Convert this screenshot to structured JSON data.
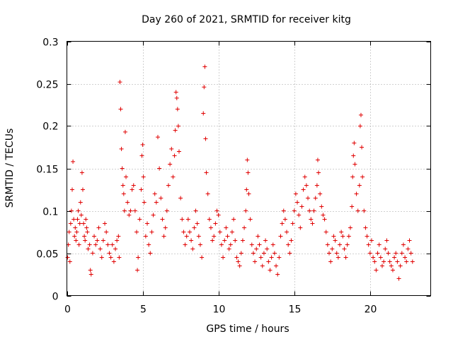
{
  "chart_data": {
    "type": "scatter",
    "title": "Day 260 of 2021, SRMTID for receiver kitg",
    "xlabel": "GPS time / hours",
    "ylabel": "SRMTID / TECUs",
    "xlim": [
      0,
      24
    ],
    "ylim": [
      0,
      0.3
    ],
    "x_ticks": [
      0,
      5,
      10,
      15,
      20
    ],
    "x_tick_labels": [
      "0",
      "5",
      "10",
      "15",
      "20"
    ],
    "y_ticks": [
      0,
      0.05,
      0.1,
      0.15,
      0.2,
      0.25,
      0.3
    ],
    "y_tick_labels": [
      "0",
      "0.05",
      "0.1",
      "0.15",
      "0.2",
      "0.25",
      "0.3"
    ],
    "grid": true,
    "marker": "plus",
    "color": "#e00000",
    "series": [
      {
        "name": "SRMTID",
        "points": [
          [
            0.05,
            0.045
          ],
          [
            0.1,
            0.06
          ],
          [
            0.15,
            0.075
          ],
          [
            0.2,
            0.04
          ],
          [
            0.25,
            0.085
          ],
          [
            0.3,
            0.1
          ],
          [
            0.35,
            0.125
          ],
          [
            0.4,
            0.158
          ],
          [
            0.45,
            0.09
          ],
          [
            0.5,
            0.07
          ],
          [
            0.55,
            0.08
          ],
          [
            0.6,
            0.065
          ],
          [
            0.65,
            0.075
          ],
          [
            0.7,
            0.09
          ],
          [
            0.75,
            0.1
          ],
          [
            0.8,
            0.06
          ],
          [
            0.85,
            0.085
          ],
          [
            0.9,
            0.11
          ],
          [
            0.95,
            0.095
          ],
          [
            1.0,
            0.145
          ],
          [
            1.05,
            0.125
          ],
          [
            1.1,
            0.085
          ],
          [
            1.15,
            0.07
          ],
          [
            1.2,
            0.065
          ],
          [
            1.25,
            0.09
          ],
          [
            1.3,
            0.08
          ],
          [
            1.35,
            0.075
          ],
          [
            1.4,
            0.055
          ],
          [
            1.5,
            0.06
          ],
          [
            1.55,
            0.03
          ],
          [
            1.6,
            0.025
          ],
          [
            1.7,
            0.05
          ],
          [
            1.8,
            0.07
          ],
          [
            1.9,
            0.06
          ],
          [
            2.0,
            0.065
          ],
          [
            2.1,
            0.08
          ],
          [
            2.2,
            0.055
          ],
          [
            2.3,
            0.045
          ],
          [
            2.4,
            0.065
          ],
          [
            2.5,
            0.085
          ],
          [
            2.6,
            0.075
          ],
          [
            2.7,
            0.06
          ],
          [
            2.8,
            0.05
          ],
          [
            2.9,
            0.045
          ],
          [
            3.0,
            0.06
          ],
          [
            3.1,
            0.04
          ],
          [
            3.2,
            0.055
          ],
          [
            3.3,
            0.065
          ],
          [
            3.4,
            0.07
          ],
          [
            3.45,
            0.045
          ],
          [
            3.5,
            0.252
          ],
          [
            3.55,
            0.22
          ],
          [
            3.6,
            0.173
          ],
          [
            3.65,
            0.15
          ],
          [
            3.7,
            0.13
          ],
          [
            3.75,
            0.12
          ],
          [
            3.8,
            0.1
          ],
          [
            3.85,
            0.193
          ],
          [
            3.9,
            0.14
          ],
          [
            4.0,
            0.11
          ],
          [
            4.1,
            0.095
          ],
          [
            4.2,
            0.1
          ],
          [
            4.3,
            0.125
          ],
          [
            4.4,
            0.13
          ],
          [
            4.5,
            0.1
          ],
          [
            4.6,
            0.075
          ],
          [
            4.65,
            0.03
          ],
          [
            4.7,
            0.045
          ],
          [
            4.8,
            0.09
          ],
          [
            4.9,
            0.125
          ],
          [
            4.95,
            0.165
          ],
          [
            5.0,
            0.178
          ],
          [
            5.05,
            0.14
          ],
          [
            5.1,
            0.11
          ],
          [
            5.2,
            0.07
          ],
          [
            5.3,
            0.085
          ],
          [
            5.4,
            0.06
          ],
          [
            5.5,
            0.05
          ],
          [
            5.6,
            0.075
          ],
          [
            5.7,
            0.095
          ],
          [
            5.8,
            0.12
          ],
          [
            5.9,
            0.11
          ],
          [
            6.0,
            0.187
          ],
          [
            6.1,
            0.15
          ],
          [
            6.2,
            0.115
          ],
          [
            6.3,
            0.09
          ],
          [
            6.4,
            0.07
          ],
          [
            6.5,
            0.08
          ],
          [
            6.6,
            0.1
          ],
          [
            6.7,
            0.13
          ],
          [
            6.8,
            0.155
          ],
          [
            6.9,
            0.173
          ],
          [
            7.0,
            0.14
          ],
          [
            7.1,
            0.165
          ],
          [
            7.15,
            0.195
          ],
          [
            7.2,
            0.24
          ],
          [
            7.25,
            0.233
          ],
          [
            7.3,
            0.22
          ],
          [
            7.35,
            0.2
          ],
          [
            7.4,
            0.17
          ],
          [
            7.5,
            0.115
          ],
          [
            7.6,
            0.09
          ],
          [
            7.7,
            0.075
          ],
          [
            7.8,
            0.06
          ],
          [
            7.9,
            0.07
          ],
          [
            8.0,
            0.09
          ],
          [
            8.1,
            0.075
          ],
          [
            8.2,
            0.065
          ],
          [
            8.3,
            0.055
          ],
          [
            8.4,
            0.08
          ],
          [
            8.5,
            0.1
          ],
          [
            8.6,
            0.085
          ],
          [
            8.7,
            0.07
          ],
          [
            8.8,
            0.06
          ],
          [
            8.9,
            0.045
          ],
          [
            9.0,
            0.215
          ],
          [
            9.05,
            0.246
          ],
          [
            9.1,
            0.27
          ],
          [
            9.15,
            0.185
          ],
          [
            9.2,
            0.145
          ],
          [
            9.3,
            0.12
          ],
          [
            9.4,
            0.09
          ],
          [
            9.5,
            0.08
          ],
          [
            9.6,
            0.065
          ],
          [
            9.7,
            0.07
          ],
          [
            9.8,
            0.085
          ],
          [
            9.9,
            0.1
          ],
          [
            10.0,
            0.095
          ],
          [
            10.1,
            0.075
          ],
          [
            10.2,
            0.06
          ],
          [
            10.3,
            0.045
          ],
          [
            10.4,
            0.065
          ],
          [
            10.5,
            0.08
          ],
          [
            10.6,
            0.07
          ],
          [
            10.7,
            0.055
          ],
          [
            10.8,
            0.06
          ],
          [
            10.9,
            0.075
          ],
          [
            11.0,
            0.09
          ],
          [
            11.1,
            0.065
          ],
          [
            11.2,
            0.045
          ],
          [
            11.3,
            0.04
          ],
          [
            11.4,
            0.035
          ],
          [
            11.5,
            0.05
          ],
          [
            11.6,
            0.065
          ],
          [
            11.7,
            0.08
          ],
          [
            11.8,
            0.1
          ],
          [
            11.85,
            0.125
          ],
          [
            11.9,
            0.16
          ],
          [
            11.95,
            0.145
          ],
          [
            12.0,
            0.12
          ],
          [
            12.1,
            0.09
          ],
          [
            12.2,
            0.06
          ],
          [
            12.3,
            0.05
          ],
          [
            12.4,
            0.04
          ],
          [
            12.5,
            0.055
          ],
          [
            12.6,
            0.07
          ],
          [
            12.7,
            0.06
          ],
          [
            12.8,
            0.045
          ],
          [
            12.9,
            0.035
          ],
          [
            13.0,
            0.05
          ],
          [
            13.1,
            0.065
          ],
          [
            13.2,
            0.055
          ],
          [
            13.3,
            0.04
          ],
          [
            13.4,
            0.03
          ],
          [
            13.5,
            0.045
          ],
          [
            13.6,
            0.06
          ],
          [
            13.7,
            0.05
          ],
          [
            13.8,
            0.035
          ],
          [
            13.9,
            0.025
          ],
          [
            14.0,
            0.045
          ],
          [
            14.1,
            0.07
          ],
          [
            14.2,
            0.085
          ],
          [
            14.3,
            0.1
          ],
          [
            14.4,
            0.09
          ],
          [
            14.5,
            0.075
          ],
          [
            14.6,
            0.06
          ],
          [
            14.7,
            0.05
          ],
          [
            14.8,
            0.065
          ],
          [
            14.9,
            0.085
          ],
          [
            15.0,
            0.1
          ],
          [
            15.1,
            0.12
          ],
          [
            15.2,
            0.11
          ],
          [
            15.3,
            0.095
          ],
          [
            15.4,
            0.08
          ],
          [
            15.5,
            0.105
          ],
          [
            15.6,
            0.125
          ],
          [
            15.7,
            0.14
          ],
          [
            15.8,
            0.13
          ],
          [
            15.9,
            0.115
          ],
          [
            16.0,
            0.1
          ],
          [
            16.1,
            0.09
          ],
          [
            16.2,
            0.085
          ],
          [
            16.3,
            0.1
          ],
          [
            16.4,
            0.115
          ],
          [
            16.5,
            0.13
          ],
          [
            16.55,
            0.16
          ],
          [
            16.6,
            0.145
          ],
          [
            16.7,
            0.12
          ],
          [
            16.8,
            0.105
          ],
          [
            16.9,
            0.095
          ],
          [
            17.0,
            0.09
          ],
          [
            17.1,
            0.075
          ],
          [
            17.2,
            0.06
          ],
          [
            17.3,
            0.05
          ],
          [
            17.4,
            0.04
          ],
          [
            17.5,
            0.055
          ],
          [
            17.6,
            0.07
          ],
          [
            17.7,
            0.065
          ],
          [
            17.8,
            0.05
          ],
          [
            17.9,
            0.045
          ],
          [
            18.0,
            0.06
          ],
          [
            18.1,
            0.075
          ],
          [
            18.2,
            0.07
          ],
          [
            18.3,
            0.055
          ],
          [
            18.4,
            0.045
          ],
          [
            18.5,
            0.06
          ],
          [
            18.6,
            0.07
          ],
          [
            18.7,
            0.08
          ],
          [
            18.8,
            0.105
          ],
          [
            18.85,
            0.14
          ],
          [
            18.9,
            0.165
          ],
          [
            18.95,
            0.18
          ],
          [
            19.0,
            0.155
          ],
          [
            19.1,
            0.12
          ],
          [
            19.2,
            0.1
          ],
          [
            19.3,
            0.13
          ],
          [
            19.35,
            0.2
          ],
          [
            19.4,
            0.213
          ],
          [
            19.45,
            0.175
          ],
          [
            19.5,
            0.14
          ],
          [
            19.6,
            0.1
          ],
          [
            19.7,
            0.08
          ],
          [
            19.8,
            0.07
          ],
          [
            19.9,
            0.06
          ],
          [
            20.0,
            0.05
          ],
          [
            20.1,
            0.065
          ],
          [
            20.2,
            0.045
          ],
          [
            20.3,
            0.04
          ],
          [
            20.4,
            0.03
          ],
          [
            20.5,
            0.05
          ],
          [
            20.6,
            0.06
          ],
          [
            20.7,
            0.045
          ],
          [
            20.8,
            0.035
          ],
          [
            20.9,
            0.04
          ],
          [
            21.0,
            0.055
          ],
          [
            21.1,
            0.065
          ],
          [
            21.2,
            0.05
          ],
          [
            21.3,
            0.04
          ],
          [
            21.4,
            0.035
          ],
          [
            21.5,
            0.03
          ],
          [
            21.6,
            0.045
          ],
          [
            21.7,
            0.05
          ],
          [
            21.8,
            0.04
          ],
          [
            21.9,
            0.02
          ],
          [
            22.0,
            0.035
          ],
          [
            22.1,
            0.05
          ],
          [
            22.2,
            0.06
          ],
          [
            22.3,
            0.045
          ],
          [
            22.4,
            0.04
          ],
          [
            22.5,
            0.055
          ],
          [
            22.6,
            0.065
          ],
          [
            22.7,
            0.05
          ],
          [
            22.8,
            0.04
          ]
        ]
      }
    ]
  }
}
